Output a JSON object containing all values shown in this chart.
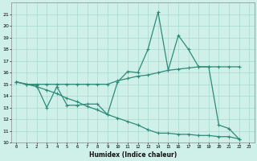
{
  "xlabel": "Humidex (Indice chaleur)",
  "x": [
    0,
    1,
    2,
    3,
    4,
    5,
    6,
    7,
    8,
    9,
    10,
    11,
    12,
    13,
    14,
    15,
    16,
    17,
    18,
    19,
    20,
    21,
    22,
    23
  ],
  "line1": [
    15.2,
    15.0,
    14.9,
    13.0,
    14.8,
    13.2,
    13.2,
    13.3,
    13.3,
    12.4,
    15.2,
    16.1,
    16.0,
    18.0,
    21.2,
    16.2,
    19.2,
    18.0,
    16.5,
    16.5,
    11.5,
    11.2,
    10.3,
    null
  ],
  "line2": [
    15.2,
    15.0,
    15.0,
    15.0,
    15.0,
    15.0,
    15.0,
    15.0,
    15.0,
    15.0,
    15.3,
    15.5,
    15.7,
    15.8,
    16.0,
    16.2,
    16.3,
    16.4,
    16.5,
    16.5,
    16.5,
    16.5,
    16.5,
    null
  ],
  "line3": [
    15.2,
    15.0,
    14.8,
    14.5,
    14.2,
    13.8,
    13.5,
    13.1,
    12.8,
    12.4,
    12.1,
    11.8,
    11.5,
    11.1,
    10.8,
    10.8,
    10.7,
    10.7,
    10.6,
    10.6,
    10.5,
    10.5,
    10.3,
    null
  ],
  "line_color": "#2e8b78",
  "bg_color": "#cef0e8",
  "grid_color": "#aad8ce",
  "ylim": [
    10,
    22
  ],
  "yticks": [
    10,
    11,
    12,
    13,
    14,
    15,
    16,
    17,
    18,
    19,
    20,
    21
  ],
  "xlim": [
    -0.5,
    23.5
  ]
}
